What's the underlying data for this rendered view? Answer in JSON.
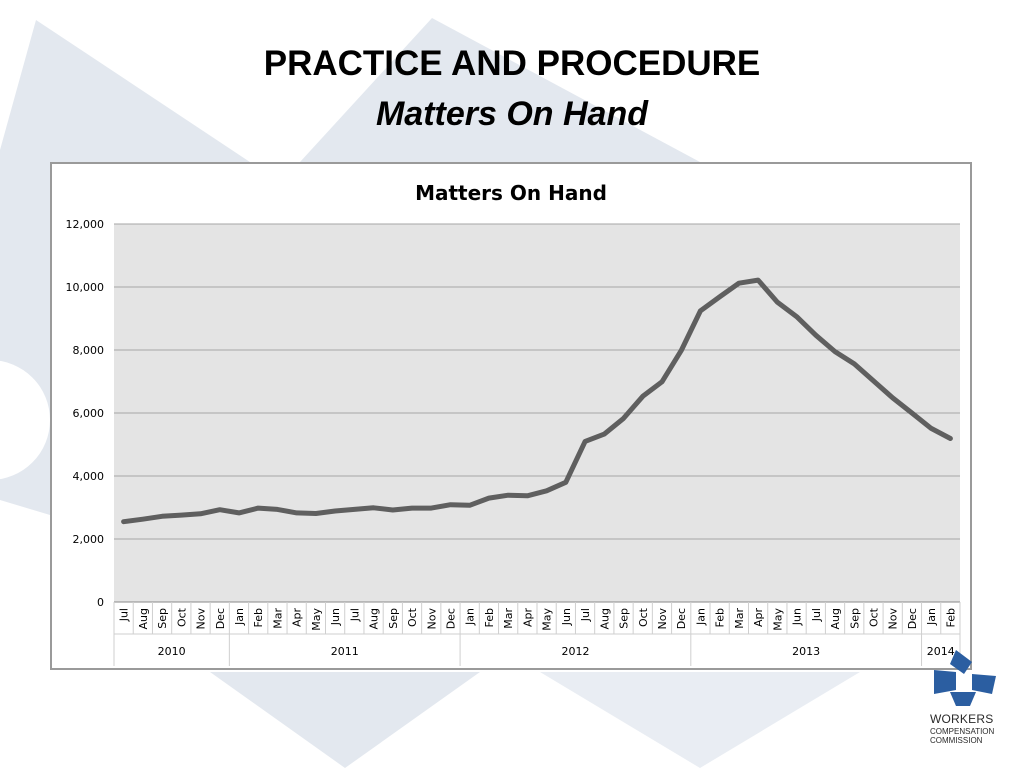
{
  "slide": {
    "title": "PRACTICE AND PROCEDURE",
    "subtitle": "Matters On Hand"
  },
  "logo": {
    "line1": "WORKERS",
    "line2": "COMPENSATION",
    "line3": "COMMISSION",
    "color": "#2b5ea1"
  },
  "colors": {
    "line": "#5f5f5f",
    "plot_bg": "#e4e4e4",
    "grid": "#a6a6a6",
    "bg_shape": "#e3e8ef"
  },
  "chart_data": {
    "type": "line",
    "title": "Matters On Hand",
    "xlabel": "",
    "ylabel": "",
    "ylim": [
      0,
      12000
    ],
    "yticks": [
      "0",
      "2,000",
      "4,000",
      "6,000",
      "8,000",
      "10,000",
      "12,000"
    ],
    "grid": true,
    "legend": "none",
    "categories": [
      "Jul",
      "Aug",
      "Sep",
      "Oct",
      "Nov",
      "Dec",
      "Jan",
      "Feb",
      "Mar",
      "Apr",
      "May",
      "Jun",
      "Jul",
      "Aug",
      "Sep",
      "Oct",
      "Nov",
      "Dec",
      "Jan",
      "Feb",
      "Mar",
      "Apr",
      "May",
      "Jun",
      "Jul",
      "Aug",
      "Sep",
      "Oct",
      "Nov",
      "Dec",
      "Jan",
      "Feb",
      "Mar",
      "Apr",
      "May",
      "Jun",
      "Jul",
      "Aug",
      "Sep",
      "Oct",
      "Nov",
      "Dec",
      "Jan",
      "Feb"
    ],
    "year_groups": [
      {
        "label": "2010",
        "count": 6
      },
      {
        "label": "2011",
        "count": 12
      },
      {
        "label": "2012",
        "count": 12
      },
      {
        "label": "2013",
        "count": 12
      },
      {
        "label": "2014",
        "count": 2
      }
    ],
    "series": [
      {
        "values": [
          2550,
          2630,
          2720,
          2760,
          2800,
          2930,
          2830,
          2980,
          2940,
          2830,
          2810,
          2890,
          2940,
          2990,
          2920,
          2980,
          2980,
          3090,
          3070,
          3300,
          3390,
          3370,
          3530,
          3800,
          5100,
          5330,
          5830,
          6530,
          6990,
          7980,
          9240,
          9690,
          10120,
          10220,
          9520,
          9060,
          8470,
          7950,
          7560,
          7020,
          6480,
          6000,
          5510,
          5190
        ]
      }
    ]
  }
}
